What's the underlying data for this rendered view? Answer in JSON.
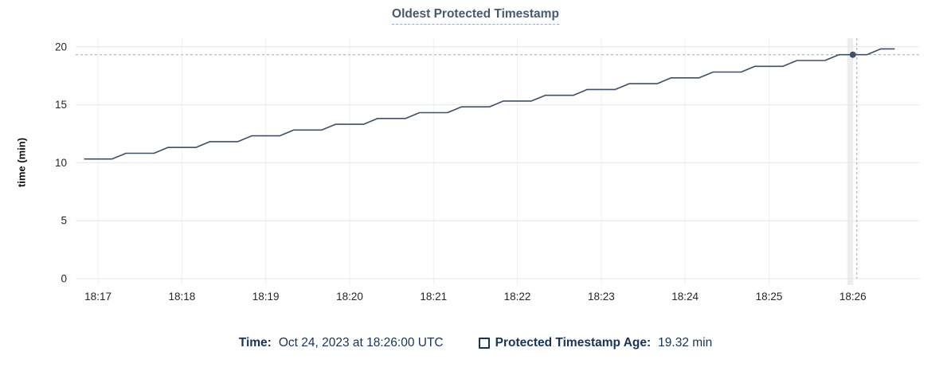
{
  "chart": {
    "title": "Oldest Protected Timestamp"
  },
  "footer": {
    "time_label": "Time:",
    "time_value": "Oct 24, 2023 at 18:26:00 UTC",
    "series_label": "Protected Timestamp Age:",
    "series_value": "19.32 min"
  },
  "colors": {
    "title": "#475872",
    "line": "#3e4f69",
    "marker": "#3e4f69",
    "crosshair": "#9fb9c8",
    "grid": "#e8e8e8",
    "footer_text": "#16335a"
  },
  "chart_data": {
    "type": "line",
    "title": "Oldest Protected Timestamp",
    "xlabel": "",
    "ylabel": "time (min)",
    "ylim": [
      0,
      20
    ],
    "y_ticks": [
      0,
      5,
      10,
      15,
      20
    ],
    "x_ticks": [
      "18:17",
      "18:18",
      "18:19",
      "18:20",
      "18:21",
      "18:22",
      "18:23",
      "18:24",
      "18:25",
      "18:26"
    ],
    "x_domain": [
      "18:16:44",
      "18:26:48"
    ],
    "grid": true,
    "legend_position": "bottom",
    "series": [
      {
        "name": "Protected Timestamp Age",
        "unit": "min",
        "color": "#3e4f69",
        "start_time": "18:16:50",
        "sample_interval_seconds": 10,
        "values": [
          10.32,
          10.32,
          10.32,
          10.82,
          10.82,
          10.82,
          11.32,
          11.32,
          11.32,
          11.82,
          11.82,
          11.82,
          12.32,
          12.32,
          12.32,
          12.82,
          12.82,
          12.82,
          13.32,
          13.32,
          13.32,
          13.82,
          13.82,
          13.82,
          14.32,
          14.32,
          14.32,
          14.82,
          14.82,
          14.82,
          15.32,
          15.32,
          15.32,
          15.82,
          15.82,
          15.82,
          16.32,
          16.32,
          16.32,
          16.82,
          16.82,
          16.82,
          17.32,
          17.32,
          17.32,
          17.82,
          17.82,
          17.82,
          18.32,
          18.32,
          18.32,
          18.82,
          18.82,
          18.82,
          19.32,
          19.32,
          19.32,
          19.82,
          19.82
        ]
      }
    ],
    "highlight": {
      "date": "Oct 24, 2023",
      "time": "18:26:00",
      "timezone": "UTC",
      "value": 19.32,
      "unit": "min"
    }
  }
}
